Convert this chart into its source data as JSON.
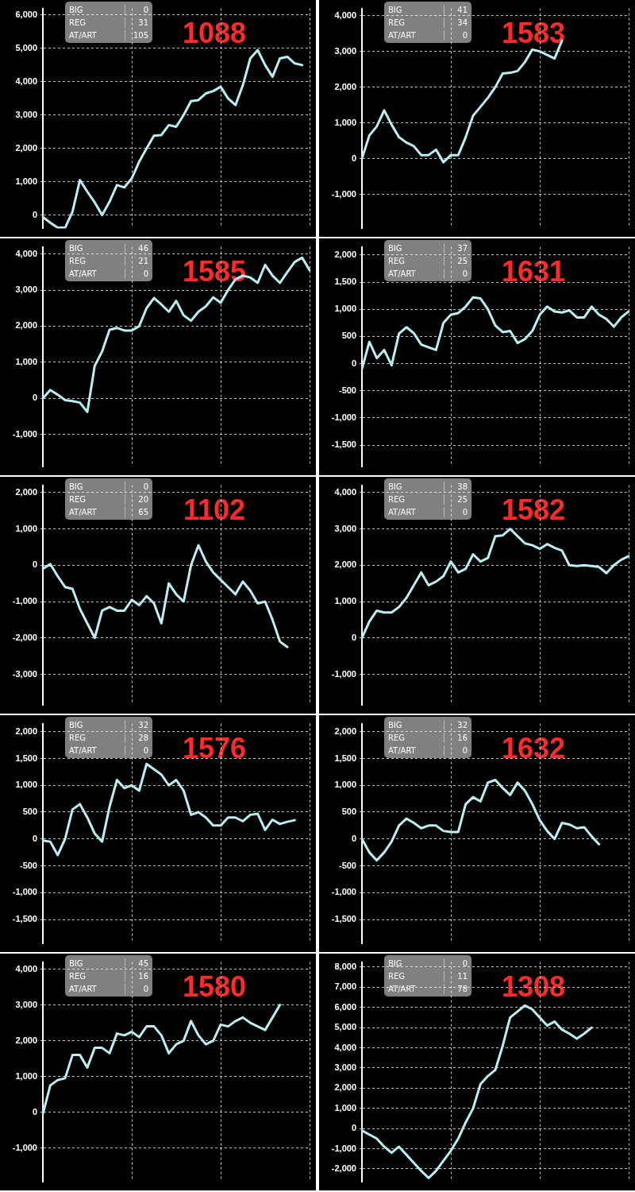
{
  "chart_data": [
    {
      "type": "line",
      "title": "1088",
      "annotations": [
        "BIG",
        "0",
        "REG",
        "31",
        "AT/ART",
        "105"
      ],
      "color": "#b8f0f4",
      "grid": true,
      "tick_labels": "y",
      "categories": [
        null,
        null,
        null,
        null,
        null,
        null,
        null,
        null,
        null,
        null,
        null,
        null,
        null,
        null,
        null,
        null,
        null,
        null,
        null,
        null,
        null,
        null,
        null,
        null,
        null,
        null,
        null,
        null,
        null,
        null,
        null,
        null,
        null,
        null,
        null,
        null,
        null
      ],
      "values": [
        -60,
        -230,
        -380,
        -380,
        100,
        1050,
        700,
        380,
        0,
        400,
        900,
        830,
        1100,
        1600,
        2000,
        2380,
        2400,
        2700,
        2650,
        3000,
        3420,
        3450,
        3650,
        3720,
        3850,
        3500,
        3300,
        3900,
        4700,
        4950,
        4500,
        4150,
        4700,
        4750,
        4550,
        4500,
        null
      ],
      "ylim": [
        -400,
        6200
      ],
      "yticks": [
        0,
        {
          "value": 1000,
          "label": "1,000"
        },
        {
          "value": 2000,
          "label": "2,000"
        },
        {
          "value": 3000,
          "label": "3,000"
        },
        {
          "value": 4000,
          "label": "4,000"
        },
        {
          "value": 5000,
          "label": "5,000"
        },
        {
          "value": 6000,
          "label": "6,000"
        }
      ]
    },
    {
      "type": "line",
      "title": "1583",
      "annotations": [
        "BIG",
        "41",
        "REG",
        "34",
        "AT/ART",
        "0"
      ],
      "color": "#b8f0f4",
      "grid": true,
      "tick_labels": "y",
      "categories": [
        null,
        null,
        null,
        null,
        null,
        null,
        null,
        null,
        null,
        null,
        null,
        null,
        null,
        null,
        null,
        null,
        null,
        null,
        null,
        null,
        null,
        null,
        null,
        null,
        null,
        null,
        null,
        null,
        null,
        null,
        null,
        null,
        null,
        null,
        null,
        null,
        null
      ],
      "values": [
        0,
        650,
        900,
        1350,
        950,
        600,
        450,
        350,
        100,
        100,
        250,
        -100,
        100,
        100,
        600,
        1200,
        1450,
        1700,
        2000,
        2380,
        2400,
        2450,
        2700,
        3050,
        3000,
        2900,
        2800,
        3300,
        null,
        null,
        null,
        null,
        null,
        null,
        null,
        null,
        null
      ],
      "ylim": [
        -1950,
        4200
      ],
      "yticks": [
        {
          "value": -1000,
          "label": "-1,000"
        },
        0,
        {
          "value": 1000,
          "label": "1,000"
        },
        {
          "value": 2000,
          "label": "2,000"
        },
        {
          "value": 3000,
          "label": "3,000"
        },
        {
          "value": 4000,
          "label": "4,000"
        }
      ]
    },
    {
      "type": "line",
      "title": "1585",
      "annotations": [
        "BIG",
        "46",
        "REG",
        "21",
        "AT/ART",
        "0"
      ],
      "color": "#b8f0f4",
      "grid": true,
      "tick_labels": "y",
      "categories": [
        null,
        null,
        null,
        null,
        null,
        null,
        null,
        null,
        null,
        null,
        null,
        null,
        null,
        null,
        null,
        null,
        null,
        null,
        null,
        null,
        null,
        null,
        null,
        null,
        null,
        null,
        null,
        null,
        null,
        null,
        null,
        null,
        null,
        null,
        null,
        null,
        null
      ],
      "values": [
        0,
        230,
        100,
        -50,
        -80,
        -120,
        -380,
        900,
        1300,
        1900,
        1950,
        1880,
        1880,
        2000,
        2500,
        2780,
        2600,
        2400,
        2700,
        2300,
        2150,
        2400,
        2550,
        2800,
        2650,
        3000,
        3300,
        3400,
        3350,
        3200,
        3700,
        3400,
        3200,
        3500,
        3780,
        3900,
        3550
      ],
      "ylim": [
        -1900,
        4200
      ],
      "yticks": [
        {
          "value": -1000,
          "label": "-1,000"
        },
        0,
        {
          "value": 1000,
          "label": "1,000"
        },
        {
          "value": 2000,
          "label": "2,000"
        },
        {
          "value": 3000,
          "label": "3,000"
        },
        {
          "value": 4000,
          "label": "4,000"
        }
      ]
    },
    {
      "type": "line",
      "title": "1631",
      "annotations": [
        "BIG",
        "37",
        "REG",
        "25",
        "AT/ART",
        "0"
      ],
      "color": "#b8f0f4",
      "grid": true,
      "tick_labels": "y",
      "categories": [
        null,
        null,
        null,
        null,
        null,
        null,
        null,
        null,
        null,
        null,
        null,
        null,
        null,
        null,
        null,
        null,
        null,
        null,
        null,
        null,
        null,
        null,
        null,
        null,
        null,
        null,
        null,
        null,
        null,
        null,
        null,
        null,
        null,
        null,
        null,
        null,
        null
      ],
      "values": [
        -100,
        400,
        100,
        250,
        -30,
        550,
        670,
        560,
        350,
        300,
        250,
        750,
        900,
        930,
        1050,
        1220,
        1200,
        1000,
        700,
        580,
        600,
        380,
        450,
        600,
        900,
        1050,
        960,
        940,
        980,
        850,
        850,
        1050,
        900,
        820,
        680,
        850,
        960
      ],
      "ylim": [
        -1900,
        2150
      ],
      "yticks": [
        {
          "value": -1500,
          "label": "-1,500"
        },
        {
          "value": -1000,
          "label": "-1,000"
        },
        -500,
        0,
        500,
        {
          "value": 1000,
          "label": "1,000"
        },
        {
          "value": 1500,
          "label": "1,500"
        },
        {
          "value": 2000,
          "label": "2,000"
        }
      ]
    },
    {
      "type": "line",
      "title": "1102",
      "annotations": [
        "BIG",
        "0",
        "REG",
        "20",
        "AT/ART",
        "65"
      ],
      "color": "#b8f0f4",
      "grid": true,
      "tick_labels": "y",
      "categories": [
        null,
        null,
        null,
        null,
        null,
        null,
        null,
        null,
        null,
        null,
        null,
        null,
        null,
        null,
        null,
        null,
        null,
        null,
        null,
        null,
        null,
        null,
        null,
        null,
        null,
        null,
        null,
        null,
        null,
        null,
        null,
        null,
        null,
        null,
        null,
        null,
        null
      ],
      "values": [
        -100,
        30,
        -300,
        -600,
        -650,
        -1200,
        -1600,
        -2000,
        -1250,
        -1150,
        -1250,
        -1250,
        -950,
        -1100,
        -850,
        -1050,
        -1600,
        -500,
        -800,
        -1000,
        0,
        550,
        100,
        -200,
        -400,
        -600,
        -800,
        -450,
        -700,
        -1050,
        -1000,
        -1500,
        -2100,
        -2250,
        null,
        null,
        null
      ],
      "ylim": [
        -3850,
        2200
      ],
      "yticks": [
        {
          "value": -3000,
          "label": "-3,000"
        },
        {
          "value": -2000,
          "label": "-2,000"
        },
        {
          "value": -1000,
          "label": "-1,000"
        },
        0,
        {
          "value": 1000,
          "label": "1,000"
        },
        {
          "value": 2000,
          "label": "2,000"
        }
      ]
    },
    {
      "type": "line",
      "title": "1582",
      "annotations": [
        "BIG",
        "38",
        "REG",
        "25",
        "AT/ART",
        "0"
      ],
      "color": "#b8f0f4",
      "grid": true,
      "tick_labels": "y",
      "categories": [
        null,
        null,
        null,
        null,
        null,
        null,
        null,
        null,
        null,
        null,
        null,
        null,
        null,
        null,
        null,
        null,
        null,
        null,
        null,
        null,
        null,
        null,
        null,
        null,
        null,
        null,
        null,
        null,
        null,
        null,
        null,
        null,
        null,
        null,
        null,
        null,
        null
      ],
      "values": [
        0,
        450,
        750,
        700,
        700,
        850,
        1100,
        1450,
        1800,
        1450,
        1550,
        1700,
        2100,
        1800,
        1900,
        2300,
        2100,
        2200,
        2800,
        2820,
        3000,
        2800,
        2600,
        2550,
        2450,
        2580,
        2480,
        2400,
        2000,
        1980,
        2000,
        1980,
        1950,
        1780,
        2000,
        2150,
        2250
      ],
      "ylim": [
        -1850,
        4200
      ],
      "yticks": [
        {
          "value": -1000,
          "label": "-1,000"
        },
        0,
        {
          "value": 1000,
          "label": "1,000"
        },
        {
          "value": 2000,
          "label": "2,000"
        },
        {
          "value": 3000,
          "label": "3,000"
        },
        {
          "value": 4000,
          "label": "4,000"
        }
      ]
    },
    {
      "type": "line",
      "title": "1576",
      "annotations": [
        "BIG",
        "32",
        "REG",
        "28",
        "AT/ART",
        "0"
      ],
      "color": "#b8f0f4",
      "grid": true,
      "tick_labels": "y",
      "categories": [
        null,
        null,
        null,
        null,
        null,
        null,
        null,
        null,
        null,
        null,
        null,
        null,
        null,
        null,
        null,
        null,
        null,
        null,
        null,
        null,
        null,
        null,
        null,
        null,
        null,
        null,
        null,
        null,
        null,
        null,
        null,
        null,
        null,
        null,
        null,
        null,
        null
      ],
      "values": [
        -30,
        -50,
        -300,
        0,
        550,
        650,
        400,
        100,
        -50,
        600,
        1100,
        950,
        1000,
        900,
        1400,
        1300,
        1200,
        1000,
        1100,
        900,
        450,
        500,
        400,
        250,
        250,
        400,
        400,
        330,
        450,
        470,
        170,
        360,
        280,
        320,
        350,
        null,
        null
      ],
      "ylim": [
        -1950,
        2150
      ],
      "yticks": [
        {
          "value": -1500,
          "label": "-1,500"
        },
        {
          "value": -1000,
          "label": "-1,000"
        },
        -500,
        0,
        500,
        {
          "value": 1000,
          "label": "1,000"
        },
        {
          "value": 1500,
          "label": "1,500"
        },
        {
          "value": 2000,
          "label": "2,000"
        }
      ]
    },
    {
      "type": "line",
      "title": "1632",
      "annotations": [
        "BIG",
        "32",
        "REG",
        "16",
        "AT/ART",
        "0"
      ],
      "color": "#b8f0f4",
      "grid": true,
      "tick_labels": "y",
      "categories": [
        null,
        null,
        null,
        null,
        null,
        null,
        null,
        null,
        null,
        null,
        null,
        null,
        null,
        null,
        null,
        null,
        null,
        null,
        null,
        null,
        null,
        null,
        null,
        null,
        null,
        null,
        null,
        null,
        null,
        null,
        null,
        null,
        null,
        null,
        null,
        null,
        null
      ],
      "values": [
        0,
        -250,
        -400,
        -250,
        -50,
        250,
        380,
        300,
        200,
        250,
        250,
        150,
        130,
        130,
        650,
        780,
        700,
        1050,
        1100,
        950,
        820,
        1050,
        900,
        650,
        350,
        150,
        0,
        300,
        270,
        200,
        220,
        50,
        -100,
        null,
        null,
        null,
        null
      ],
      "ylim": [
        -1950,
        2150
      ],
      "yticks": [
        {
          "value": -1500,
          "label": "-1,500"
        },
        {
          "value": -1000,
          "label": "-1,000"
        },
        -500,
        0,
        500,
        {
          "value": 1000,
          "label": "1,000"
        },
        {
          "value": 1500,
          "label": "1,500"
        },
        {
          "value": 2000,
          "label": "2,000"
        }
      ]
    },
    {
      "type": "line",
      "title": "1580",
      "annotations": [
        "BIG",
        "45",
        "REG",
        "16",
        "AT/ART",
        "0"
      ],
      "color": "#b8f0f4",
      "grid": true,
      "tick_labels": "y",
      "categories": [
        null,
        null,
        null,
        null,
        null,
        null,
        null,
        null,
        null,
        null,
        null,
        null,
        null,
        null,
        null,
        null,
        null,
        null,
        null,
        null,
        null,
        null,
        null,
        null,
        null,
        null,
        null,
        null,
        null,
        null,
        null,
        null,
        null,
        null,
        null,
        null,
        null
      ],
      "values": [
        -50,
        750,
        900,
        950,
        1600,
        1600,
        1250,
        1800,
        1800,
        1650,
        2200,
        2150,
        2250,
        2100,
        2400,
        2400,
        2150,
        1650,
        1900,
        2000,
        2550,
        2150,
        1900,
        2000,
        2450,
        2400,
        2550,
        2650,
        2500,
        2400,
        2300,
        2650,
        3000,
        null,
        null,
        null,
        null
      ],
      "ylim": [
        -1950,
        4200
      ],
      "yticks": [
        {
          "value": -1000,
          "label": "-1,000"
        },
        0,
        {
          "value": 1000,
          "label": "1,000"
        },
        {
          "value": 2000,
          "label": "2,000"
        },
        {
          "value": 3000,
          "label": "3,000"
        },
        {
          "value": 4000,
          "label": "4,000"
        }
      ]
    },
    {
      "type": "line",
      "title": "1308",
      "annotations": [
        "BIG",
        "0",
        "REG",
        "11",
        "AT/ART",
        "78"
      ],
      "color": "#b8f0f4",
      "grid": true,
      "tick_labels": "y",
      "categories": [
        null,
        null,
        null,
        null,
        null,
        null,
        null,
        null,
        null,
        null,
        null,
        null,
        null,
        null,
        null,
        null,
        null,
        null,
        null,
        null,
        null,
        null,
        null,
        null,
        null,
        null,
        null,
        null,
        null,
        null,
        null,
        null,
        null,
        null,
        null,
        null,
        null
      ],
      "values": [
        -100,
        -300,
        -500,
        -900,
        -1200,
        -900,
        -1300,
        -1700,
        -2100,
        -2450,
        -2100,
        -1600,
        -1100,
        -500,
        300,
        1000,
        2200,
        2600,
        2900,
        4100,
        5500,
        5800,
        6100,
        5900,
        5500,
        5100,
        5300,
        4900,
        4700,
        4450,
        4700,
        5000,
        null,
        null,
        null,
        null,
        null
      ],
      "ylim": [
        -2650,
        8250
      ],
      "yticks": [
        {
          "value": -2000,
          "label": "-2,000"
        },
        {
          "value": -1000,
          "label": "-1,000"
        },
        0,
        {
          "value": 1000,
          "label": "1,000"
        },
        {
          "value": 2000,
          "label": "2,000"
        },
        {
          "value": 3000,
          "label": "3,000"
        },
        {
          "value": 4000,
          "label": "4,000"
        },
        {
          "value": 5000,
          "label": "5,000"
        },
        {
          "value": 6000,
          "label": "6,000"
        },
        {
          "value": 7000,
          "label": "7,000"
        },
        {
          "value": 8000,
          "label": "8,000"
        }
      ]
    }
  ]
}
